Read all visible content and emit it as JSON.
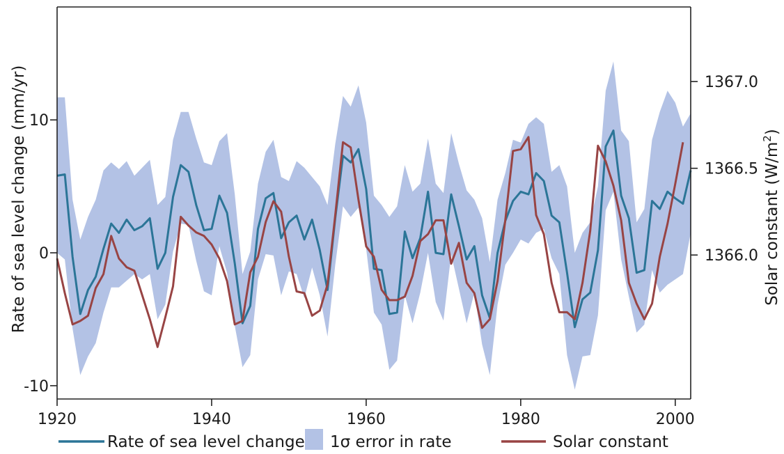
{
  "chart_data": {
    "type": "line",
    "xlabel": "",
    "ylabel_left": "Rate of sea level change (mm/yr)",
    "ylabel_right_prefix": "Solar constant (W/m",
    "ylabel_right_sup": "2",
    "ylabel_right_suffix": ")",
    "xlim": [
      1920,
      2002
    ],
    "ylim_left": [
      -11,
      18.5
    ],
    "ylim_right": [
      1365.17,
      1367.43
    ],
    "x_ticks": [
      1920,
      1940,
      1960,
      1980,
      2000
    ],
    "x_tick_labels": [
      "1920",
      "1940",
      "1960",
      "1980",
      "2000"
    ],
    "y_left_ticks": [
      -10,
      0,
      10
    ],
    "y_left_tick_labels": [
      "-10",
      "0",
      "10"
    ],
    "y_right_ticks": [
      1366.0,
      1366.5,
      1367.0
    ],
    "y_right_tick_labels": [
      "1366.0",
      "1366.5",
      "1367.0"
    ],
    "grid": false,
    "legend_position": "bottom",
    "colors": {
      "sea_level": "#2b7597",
      "solar": "#984444",
      "error_band": "#b3c2e5"
    },
    "series": [
      {
        "name": "Rate of sea level change",
        "axis": "left",
        "x": [
          1920,
          1921,
          1922,
          1923,
          1924,
          1925,
          1926,
          1927,
          1928,
          1929,
          1930,
          1931,
          1932,
          1933,
          1934,
          1935,
          1936,
          1937,
          1938,
          1939,
          1940,
          1941,
          1942,
          1943,
          1944,
          1945,
          1946,
          1947,
          1948,
          1949,
          1950,
          1951,
          1952,
          1953,
          1954,
          1955,
          1956,
          1957,
          1958,
          1959,
          1960,
          1961,
          1962,
          1963,
          1964,
          1965,
          1966,
          1967,
          1968,
          1969,
          1970,
          1971,
          1972,
          1973,
          1974,
          1975,
          1976,
          1977,
          1978,
          1979,
          1980,
          1981,
          1982,
          1983,
          1984,
          1985,
          1986,
          1987,
          1988,
          1989,
          1990,
          1991,
          1992,
          1993,
          1994,
          1995,
          1996,
          1997,
          1998,
          1999,
          2000,
          2001,
          2002
        ],
        "values": [
          5.8,
          5.9,
          -0.3,
          -4.6,
          -2.8,
          -1.8,
          0.3,
          2.2,
          1.5,
          2.5,
          1.7,
          2.0,
          2.6,
          -1.2,
          0.0,
          4.2,
          6.6,
          6.1,
          3.6,
          1.7,
          1.8,
          4.3,
          3.0,
          -0.8,
          -5.3,
          -4.0,
          1.8,
          4.1,
          4.5,
          1.1,
          2.3,
          2.8,
          1.0,
          2.5,
          0.2,
          -2.8,
          2.6,
          7.3,
          6.8,
          7.8,
          4.8,
          -1.2,
          -1.3,
          -4.6,
          -4.5,
          1.6,
          -0.4,
          1.1,
          4.6,
          0.0,
          -0.1,
          4.4,
          2.0,
          -0.5,
          0.5,
          -3.2,
          -4.9,
          0.0,
          2.4,
          3.9,
          4.6,
          4.4,
          6.0,
          5.4,
          2.8,
          2.3,
          -1.5,
          -5.6,
          -3.5,
          -3.0,
          0.2,
          8.0,
          9.2,
          4.3,
          2.6,
          -1.5,
          -1.3,
          3.9,
          3.3,
          4.6,
          4.1,
          3.7,
          6.2
        ]
      },
      {
        "name": "1σ error in rate",
        "axis": "left",
        "x": [
          1920,
          1921,
          1922,
          1923,
          1924,
          1925,
          1926,
          1927,
          1928,
          1929,
          1930,
          1931,
          1932,
          1933,
          1934,
          1935,
          1936,
          1937,
          1938,
          1939,
          1940,
          1941,
          1942,
          1943,
          1944,
          1945,
          1946,
          1947,
          1948,
          1949,
          1950,
          1951,
          1952,
          1953,
          1954,
          1955,
          1956,
          1957,
          1958,
          1959,
          1960,
          1961,
          1962,
          1963,
          1964,
          1965,
          1966,
          1967,
          1968,
          1969,
          1970,
          1971,
          1972,
          1973,
          1974,
          1975,
          1976,
          1977,
          1978,
          1979,
          1980,
          1981,
          1982,
          1983,
          1984,
          1985,
          1986,
          1987,
          1988,
          1989,
          1990,
          1991,
          1992,
          1993,
          1994,
          1995,
          1996,
          1997,
          1998,
          1999,
          2000,
          2001,
          2002
        ],
        "upper": [
          11.7,
          11.7,
          4.0,
          1.0,
          2.7,
          4.0,
          6.2,
          6.8,
          6.3,
          6.9,
          5.8,
          6.4,
          7.0,
          3.6,
          4.2,
          8.5,
          10.6,
          10.6,
          8.6,
          6.8,
          6.6,
          8.4,
          9.0,
          4.4,
          -1.6,
          0.1,
          5.2,
          7.6,
          8.5,
          5.7,
          5.4,
          6.9,
          6.4,
          5.7,
          5.0,
          3.6,
          8.2,
          11.8,
          11.0,
          12.6,
          9.8,
          4.3,
          3.6,
          2.7,
          3.5,
          6.6,
          4.6,
          5.2,
          8.6,
          5.2,
          4.5,
          9.0,
          6.7,
          4.7,
          4.0,
          2.6,
          -0.7,
          4.0,
          6.0,
          8.5,
          8.3,
          9.7,
          10.2,
          9.7,
          6.1,
          6.6,
          5.0,
          0.0,
          1.5,
          2.3,
          5.0,
          12.2,
          14.4,
          9.2,
          8.4,
          2.3,
          3.3,
          8.5,
          10.6,
          12.2,
          11.3,
          9.5,
          10.5
        ],
        "lower": [
          0.0,
          -0.5,
          -5.7,
          -9.2,
          -7.8,
          -6.8,
          -4.5,
          -2.6,
          -2.6,
          -2.1,
          -1.6,
          -2.0,
          -1.6,
          -5.0,
          -3.9,
          0.1,
          2.2,
          2.1,
          -0.6,
          -2.9,
          -3.2,
          0.5,
          -1.5,
          -5.5,
          -8.6,
          -7.7,
          -2.0,
          -0.1,
          -0.2,
          -3.2,
          -1.4,
          -1.6,
          -3.4,
          -1.1,
          -3.2,
          -6.3,
          -0.9,
          3.5,
          2.7,
          3.4,
          0.3,
          -4.5,
          -5.4,
          -8.8,
          -8.1,
          -3.2,
          -5.3,
          -3.0,
          0.0,
          -3.7,
          -5.1,
          -0.1,
          -2.7,
          -5.3,
          -3.0,
          -6.9,
          -9.2,
          -3.9,
          -0.9,
          0.0,
          1.0,
          0.7,
          1.5,
          1.8,
          -0.4,
          -1.6,
          -7.7,
          -10.3,
          -7.8,
          -7.7,
          -4.7,
          3.2,
          4.6,
          -0.5,
          -3.3,
          -6.0,
          -5.4,
          -1.3,
          -3.0,
          -2.4,
          -2.0,
          -1.6,
          1.5
        ]
      },
      {
        "name": "Solar constant",
        "axis": "right",
        "x": [
          1920,
          1921,
          1922,
          1923,
          1924,
          1925,
          1926,
          1927,
          1928,
          1929,
          1930,
          1931,
          1932,
          1933,
          1934,
          1935,
          1936,
          1937,
          1938,
          1939,
          1940,
          1941,
          1942,
          1943,
          1944,
          1945,
          1946,
          1947,
          1948,
          1949,
          1950,
          1951,
          1952,
          1953,
          1954,
          1955,
          1956,
          1957,
          1958,
          1959,
          1960,
          1961,
          1962,
          1963,
          1964,
          1965,
          1966,
          1967,
          1968,
          1969,
          1970,
          1971,
          1972,
          1973,
          1974,
          1975,
          1976,
          1977,
          1978,
          1979,
          1980,
          1981,
          1982,
          1983,
          1984,
          1985,
          1986,
          1987,
          1988,
          1989,
          1990,
          1991,
          1992,
          1993,
          1994,
          1995,
          1996,
          1997,
          1998,
          1999,
          2000,
          2001
        ],
        "values": [
          1365.98,
          1365.78,
          1365.6,
          1365.62,
          1365.65,
          1365.81,
          1365.89,
          1366.11,
          1365.98,
          1365.93,
          1365.91,
          1365.77,
          1365.63,
          1365.47,
          1365.64,
          1365.82,
          1366.22,
          1366.17,
          1366.13,
          1366.11,
          1366.06,
          1365.98,
          1365.85,
          1365.6,
          1365.62,
          1365.9,
          1365.99,
          1366.19,
          1366.31,
          1366.25,
          1365.99,
          1365.79,
          1365.78,
          1365.65,
          1365.68,
          1365.83,
          1366.23,
          1366.65,
          1366.62,
          1366.32,
          1366.05,
          1365.99,
          1365.8,
          1365.74,
          1365.74,
          1365.76,
          1365.88,
          1366.08,
          1366.12,
          1366.2,
          1366.2,
          1365.95,
          1366.07,
          1365.84,
          1365.78,
          1365.58,
          1365.63,
          1365.85,
          1366.2,
          1366.6,
          1366.61,
          1366.68,
          1366.23,
          1366.12,
          1365.84,
          1365.67,
          1365.67,
          1365.63,
          1365.84,
          1366.14,
          1366.63,
          1366.54,
          1366.4,
          1366.2,
          1365.84,
          1365.72,
          1365.63,
          1365.72,
          1365.99,
          1366.18,
          1366.41,
          1366.65
        ]
      }
    ]
  },
  "legend": {
    "items": [
      {
        "label": "Rate of sea level change",
        "type": "line",
        "color": "#2b7597"
      },
      {
        "label": "1σ error in rate",
        "type": "patch",
        "color": "#b3c2e5"
      },
      {
        "label": "Solar constant",
        "type": "line",
        "color": "#984444"
      }
    ]
  }
}
